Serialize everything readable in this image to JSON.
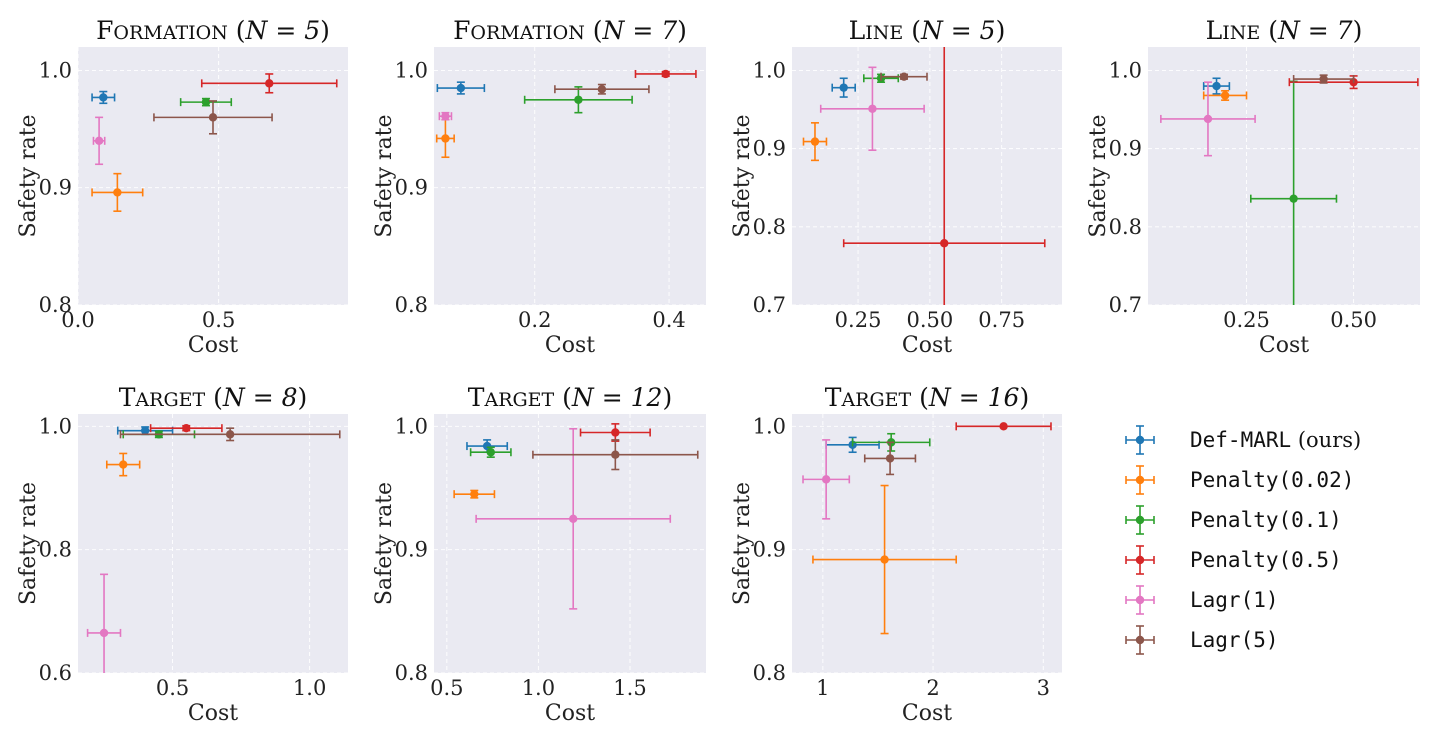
{
  "figure": {
    "x_axis_label": "Cost",
    "y_axis_label": "Safety rate"
  },
  "colors": {
    "background": "#eaeaf2",
    "grid": "#ffffff"
  },
  "legend": {
    "placement": "right",
    "items": [
      {
        "key": "defmarl",
        "label": "Def-MARL",
        "suffix": " (ours)",
        "color": "#1f77b4"
      },
      {
        "key": "pen002",
        "label": "Penalty(0.02)",
        "suffix": "",
        "color": "#ff7f0e"
      },
      {
        "key": "pen01",
        "label": "Penalty(0.1)",
        "suffix": "",
        "color": "#2ca02c"
      },
      {
        "key": "pen05",
        "label": "Penalty(0.5)",
        "suffix": "",
        "color": "#d62728"
      },
      {
        "key": "lagr1",
        "label": "Lagr(1)",
        "suffix": "",
        "color": "#e377c2"
      },
      {
        "key": "lagr5",
        "label": "Lagr(5)",
        "suffix": "",
        "color": "#8c564b"
      }
    ]
  },
  "chart_data": [
    {
      "type": "scatter",
      "title_env": "FORMATION",
      "title_n": "N = 5",
      "xlabel": "Cost",
      "ylabel": "Safety rate",
      "xlim": [
        0.0,
        0.96
      ],
      "ylim": [
        0.8,
        1.02
      ],
      "xticks": [
        0.0,
        0.5
      ],
      "xtick_labels": [
        "0.0",
        "0.5"
      ],
      "yticks": [
        0.8,
        0.9,
        1.0
      ],
      "ytick_labels": [
        "0.8",
        "0.9",
        "1.0"
      ],
      "points": [
        {
          "series": "defmarl",
          "x": 0.09,
          "xerr": 0.04,
          "y": 0.977,
          "yerr": 0.005
        },
        {
          "series": "pen002",
          "x": 0.14,
          "xerr": 0.09,
          "y": 0.896,
          "yerr": 0.016
        },
        {
          "series": "pen01",
          "x": 0.455,
          "xerr": 0.09,
          "y": 0.973,
          "yerr": 0.003
        },
        {
          "series": "pen05",
          "x": 0.68,
          "xerr": 0.24,
          "y": 0.989,
          "yerr": 0.008
        },
        {
          "series": "lagr1",
          "x": 0.075,
          "xerr": 0.02,
          "y": 0.94,
          "yerr": 0.02
        },
        {
          "series": "lagr5",
          "x": 0.48,
          "xerr": 0.21,
          "y": 0.96,
          "yerr": 0.014
        }
      ]
    },
    {
      "type": "scatter",
      "title_env": "FORMATION",
      "title_n": "N = 7",
      "xlabel": "Cost",
      "ylabel": "Safety rate",
      "xlim": [
        0.05,
        0.455
      ],
      "ylim": [
        0.8,
        1.02
      ],
      "xticks": [
        0.2,
        0.4
      ],
      "xtick_labels": [
        "0.2",
        "0.4"
      ],
      "yticks": [
        0.8,
        0.9,
        1.0
      ],
      "ytick_labels": [
        "0.8",
        "0.9",
        "1.0"
      ],
      "points": [
        {
          "series": "defmarl",
          "x": 0.09,
          "xerr": 0.035,
          "y": 0.985,
          "yerr": 0.005
        },
        {
          "series": "pen002",
          "x": 0.067,
          "xerr": 0.013,
          "y": 0.942,
          "yerr": 0.016
        },
        {
          "series": "pen01",
          "x": 0.265,
          "xerr": 0.08,
          "y": 0.975,
          "yerr": 0.011
        },
        {
          "series": "pen05",
          "x": 0.395,
          "xerr": 0.045,
          "y": 0.997,
          "yerr": 0.002
        },
        {
          "series": "lagr1",
          "x": 0.067,
          "xerr": 0.009,
          "y": 0.961,
          "yerr": 0.003
        },
        {
          "series": "lagr5",
          "x": 0.3,
          "xerr": 0.07,
          "y": 0.984,
          "yerr": 0.004
        }
      ]
    },
    {
      "type": "scatter",
      "title_env": "LINE",
      "title_n": "N = 5",
      "xlabel": "Cost",
      "ylabel": "Safety rate",
      "xlim": [
        0.02,
        0.96
      ],
      "ylim": [
        0.7,
        1.03
      ],
      "xticks": [
        0.25,
        0.5,
        0.75
      ],
      "xtick_labels": [
        "0.25",
        "0.50",
        "0.75"
      ],
      "yticks": [
        0.7,
        0.8,
        0.9,
        1.0
      ],
      "ytick_labels": [
        "0.7",
        "0.8",
        "0.9",
        "1.0"
      ],
      "points": [
        {
          "series": "defmarl",
          "x": 0.2,
          "xerr": 0.04,
          "y": 0.978,
          "yerr": 0.012
        },
        {
          "series": "pen002",
          "x": 0.1,
          "xerr": 0.04,
          "y": 0.909,
          "yerr": 0.024
        },
        {
          "series": "pen01",
          "x": 0.33,
          "xerr": 0.06,
          "y": 0.99,
          "yerr": 0.005
        },
        {
          "series": "pen05",
          "x": 0.55,
          "xerr": 0.35,
          "y": 0.779,
          "yerr": 0.4
        },
        {
          "series": "lagr1",
          "x": 0.3,
          "xerr": 0.18,
          "y": 0.951,
          "yerr": 0.053
        },
        {
          "series": "lagr5",
          "x": 0.41,
          "xerr": 0.08,
          "y": 0.992,
          "yerr": 0.003
        }
      ]
    },
    {
      "type": "scatter",
      "title_env": "LINE",
      "title_n": "N = 7",
      "xlabel": "Cost",
      "ylabel": "Safety rate",
      "xlim": [
        0.02,
        0.655
      ],
      "ylim": [
        0.7,
        1.03
      ],
      "xticks": [
        0.25,
        0.5
      ],
      "xtick_labels": [
        "0.25",
        "0.50"
      ],
      "yticks": [
        0.7,
        0.8,
        0.9,
        1.0
      ],
      "ytick_labels": [
        "0.7",
        "0.8",
        "0.9",
        "1.0"
      ],
      "points": [
        {
          "series": "defmarl",
          "x": 0.18,
          "xerr": 0.03,
          "y": 0.98,
          "yerr": 0.01
        },
        {
          "series": "pen002",
          "x": 0.2,
          "xerr": 0.05,
          "y": 0.968,
          "yerr": 0.006
        },
        {
          "series": "pen01",
          "x": 0.36,
          "xerr": 0.1,
          "y": 0.836,
          "yerr": 0.15
        },
        {
          "series": "pen05",
          "x": 0.5,
          "xerr": 0.15,
          "y": 0.985,
          "yerr": 0.008
        },
        {
          "series": "lagr1",
          "x": 0.16,
          "xerr": 0.11,
          "y": 0.938,
          "yerr": 0.047
        },
        {
          "series": "lagr5",
          "x": 0.43,
          "xerr": 0.07,
          "y": 0.989,
          "yerr": 0.005
        }
      ]
    },
    {
      "type": "scatter",
      "title_env": "TARGET",
      "title_n": "N = 8",
      "xlabel": "Cost",
      "ylabel": "Safety rate",
      "xlim": [
        0.155,
        1.14
      ],
      "ylim": [
        0.6,
        1.02
      ],
      "xticks": [
        0.5,
        1.0
      ],
      "xtick_labels": [
        "0.5",
        "1.0"
      ],
      "yticks": [
        0.6,
        0.8,
        1.0
      ],
      "ytick_labels": [
        "0.6",
        "0.8",
        "1.0"
      ],
      "points": [
        {
          "series": "defmarl",
          "x": 0.4,
          "xerr": 0.1,
          "y": 0.993,
          "yerr": 0.006
        },
        {
          "series": "pen002",
          "x": 0.32,
          "xerr": 0.06,
          "y": 0.938,
          "yerr": 0.018
        },
        {
          "series": "pen01",
          "x": 0.45,
          "xerr": 0.13,
          "y": 0.987,
          "yerr": 0.005
        },
        {
          "series": "pen05",
          "x": 0.55,
          "xerr": 0.13,
          "y": 0.997,
          "yerr": 0.004
        },
        {
          "series": "lagr1",
          "x": 0.25,
          "xerr": 0.06,
          "y": 0.665,
          "yerr": 0.095
        },
        {
          "series": "lagr5",
          "x": 0.71,
          "xerr": 0.4,
          "y": 0.987,
          "yerr": 0.01
        }
      ]
    },
    {
      "type": "scatter",
      "title_env": "TARGET",
      "title_n": "N = 12",
      "xlabel": "Cost",
      "ylabel": "Safety rate",
      "xlim": [
        0.43,
        1.915
      ],
      "ylim": [
        0.8,
        1.01
      ],
      "xticks": [
        0.5,
        1.0,
        1.5
      ],
      "xtick_labels": [
        "0.5",
        "1.0",
        "1.5"
      ],
      "yticks": [
        0.8,
        0.9,
        1.0
      ],
      "ytick_labels": [
        "0.8",
        "0.9",
        "1.0"
      ],
      "points": [
        {
          "series": "defmarl",
          "x": 0.72,
          "xerr": 0.11,
          "y": 0.984,
          "yerr": 0.005
        },
        {
          "series": "pen002",
          "x": 0.65,
          "xerr": 0.11,
          "y": 0.945,
          "yerr": 0.003
        },
        {
          "series": "pen01",
          "x": 0.74,
          "xerr": 0.11,
          "y": 0.979,
          "yerr": 0.004
        },
        {
          "series": "pen05",
          "x": 1.42,
          "xerr": 0.19,
          "y": 0.995,
          "yerr": 0.007
        },
        {
          "series": "lagr1",
          "x": 1.19,
          "xerr": 0.53,
          "y": 0.925,
          "yerr": 0.073
        },
        {
          "series": "lagr5",
          "x": 1.42,
          "xerr": 0.45,
          "y": 0.977,
          "yerr": 0.012
        }
      ]
    },
    {
      "type": "scatter",
      "title_env": "TARGET",
      "title_n": "N = 16",
      "xlabel": "Cost",
      "ylabel": "Safety rate",
      "xlim": [
        0.72,
        3.17
      ],
      "ylim": [
        0.8,
        1.01
      ],
      "xticks": [
        1,
        2,
        3
      ],
      "xtick_labels": [
        "1",
        "2",
        "3"
      ],
      "yticks": [
        0.8,
        0.9,
        1.0
      ],
      "ytick_labels": [
        "0.8",
        "0.9",
        "1.0"
      ],
      "points": [
        {
          "series": "defmarl",
          "x": 1.27,
          "xerr": 0.24,
          "y": 0.985,
          "yerr": 0.006
        },
        {
          "series": "pen002",
          "x": 1.56,
          "xerr": 0.65,
          "y": 0.892,
          "yerr": 0.06
        },
        {
          "series": "pen01",
          "x": 1.62,
          "xerr": 0.35,
          "y": 0.987,
          "yerr": 0.007
        },
        {
          "series": "pen05",
          "x": 2.64,
          "xerr": 0.43,
          "y": 1.0,
          "yerr": 0.0
        },
        {
          "series": "lagr1",
          "x": 1.03,
          "xerr": 0.21,
          "y": 0.957,
          "yerr": 0.032
        },
        {
          "series": "lagr5",
          "x": 1.61,
          "xerr": 0.23,
          "y": 0.974,
          "yerr": 0.013
        }
      ]
    }
  ]
}
